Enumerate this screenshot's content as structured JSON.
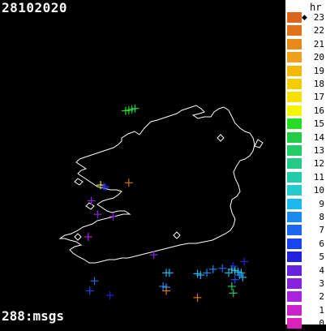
{
  "date": "28102020",
  "count_label": "288:msgs",
  "legend": {
    "unit": "hr",
    "current_hour": 23,
    "hours": [
      {
        "h": "23",
        "color": "#d9661a"
      },
      {
        "h": "22",
        "color": "#e0721a"
      },
      {
        "h": "21",
        "color": "#e88a1a"
      },
      {
        "h": "20",
        "color": "#f0a01a"
      },
      {
        "h": "19",
        "color": "#f5b800"
      },
      {
        "h": "18",
        "color": "#f5cc00"
      },
      {
        "h": "17",
        "color": "#f5e000"
      },
      {
        "h": "16",
        "color": "#f5f500"
      },
      {
        "h": "15",
        "color": "#22dd22"
      },
      {
        "h": "14",
        "color": "#22cc44"
      },
      {
        "h": "13",
        "color": "#22cc66"
      },
      {
        "h": "12",
        "color": "#22cc88"
      },
      {
        "h": "11",
        "color": "#22ccaa"
      },
      {
        "h": "10",
        "color": "#22cccc"
      },
      {
        "h": "9",
        "color": "#1ab8ee"
      },
      {
        "h": "8",
        "color": "#1a88ee"
      },
      {
        "h": "7",
        "color": "#1a66ee"
      },
      {
        "h": "6",
        "color": "#1a44ee"
      },
      {
        "h": "5",
        "color": "#2222dd"
      },
      {
        "h": "4",
        "color": "#6622dd"
      },
      {
        "h": "3",
        "color": "#8822dd"
      },
      {
        "h": "2",
        "color": "#aa22dd"
      },
      {
        "h": "1",
        "color": "#cc22cc"
      },
      {
        "h": "0",
        "color": "#dd22bb"
      }
    ]
  },
  "strikes": [
    {
      "lon": -8.3,
      "lat": 55.2,
      "hour": 15
    },
    {
      "lon": -8.2,
      "lat": 55.21,
      "hour": 15
    },
    {
      "lon": -8.1,
      "lat": 55.23,
      "hour": 14
    },
    {
      "lon": -8.0,
      "lat": 55.25,
      "hour": 14
    },
    {
      "lon": -9.1,
      "lat": 53.55,
      "hour": 16
    },
    {
      "lon": -9.0,
      "lat": 53.52,
      "hour": 5
    },
    {
      "lon": -8.95,
      "lat": 53.5,
      "hour": 5
    },
    {
      "lon": -8.2,
      "lat": 53.6,
      "hour": 23
    },
    {
      "lon": -9.4,
      "lat": 53.2,
      "hour": 3
    },
    {
      "lon": -9.2,
      "lat": 52.9,
      "hour": 3
    },
    {
      "lon": -8.7,
      "lat": 52.85,
      "hour": 3
    },
    {
      "lon": -9.5,
      "lat": 52.4,
      "hour": 2
    },
    {
      "lon": -7.4,
      "lat": 52.0,
      "hour": 3
    },
    {
      "lon": -7.0,
      "lat": 51.6,
      "hour": 9
    },
    {
      "lon": -6.9,
      "lat": 51.6,
      "hour": 9
    },
    {
      "lon": -6.0,
      "lat": 51.58,
      "hour": 9
    },
    {
      "lon": -5.9,
      "lat": 51.55,
      "hour": 9
    },
    {
      "lon": -5.7,
      "lat": 51.6,
      "hour": 8
    },
    {
      "lon": -5.5,
      "lat": 51.68,
      "hour": 8
    },
    {
      "lon": -5.2,
      "lat": 51.7,
      "hour": 7
    },
    {
      "lon": -5.0,
      "lat": 51.6,
      "hour": 9
    },
    {
      "lon": -4.9,
      "lat": 51.68,
      "hour": 10
    },
    {
      "lon": -4.8,
      "lat": 51.65,
      "hour": 10
    },
    {
      "lon": -4.7,
      "lat": 51.62,
      "hour": 9
    },
    {
      "lon": -4.6,
      "lat": 51.6,
      "hour": 9
    },
    {
      "lon": -4.65,
      "lat": 51.55,
      "hour": 8
    },
    {
      "lon": -4.55,
      "lat": 51.5,
      "hour": 9
    },
    {
      "lon": -4.8,
      "lat": 51.45,
      "hour": 6
    },
    {
      "lon": -4.85,
      "lat": 51.75,
      "hour": 5
    },
    {
      "lon": -4.5,
      "lat": 51.85,
      "hour": 5
    },
    {
      "lon": -4.9,
      "lat": 51.3,
      "hour": 13
    },
    {
      "lon": -4.85,
      "lat": 51.15,
      "hour": 13
    },
    {
      "lon": -9.3,
      "lat": 51.42,
      "hour": 7
    },
    {
      "lon": -9.45,
      "lat": 51.2,
      "hour": 6
    },
    {
      "lon": -8.8,
      "lat": 51.1,
      "hour": 5
    },
    {
      "lon": -7.1,
      "lat": 51.3,
      "hour": 8
    },
    {
      "lon": -7.0,
      "lat": 51.28,
      "hour": 8
    },
    {
      "lon": -7.0,
      "lat": 51.2,
      "hour": 22
    },
    {
      "lon": -6.0,
      "lat": 51.05,
      "hour": 22
    }
  ]
}
